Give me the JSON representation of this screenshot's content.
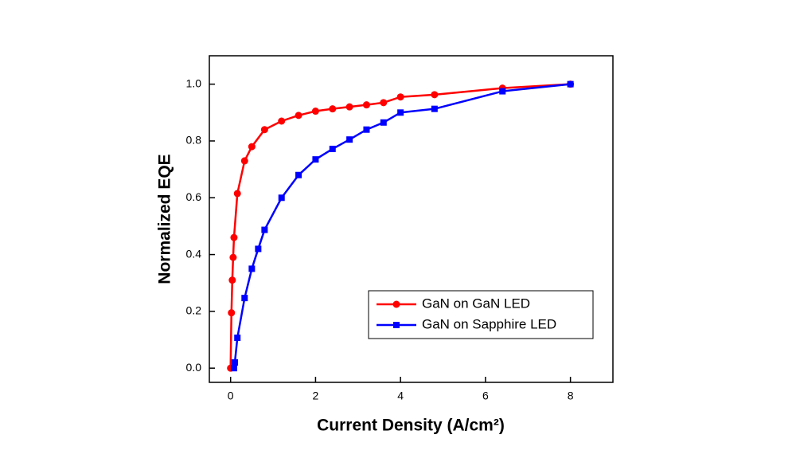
{
  "chart_data": {
    "type": "line",
    "xlabel": "Current Density (A/cm²)",
    "ylabel": "Normalized EQE",
    "xlim": [
      -0.5,
      9
    ],
    "ylim": [
      -0.05,
      1.1
    ],
    "xticks": [
      0,
      2,
      4,
      6,
      8
    ],
    "yticks": [
      {
        "value": 0,
        "label": "0.0"
      },
      {
        "value": 0.2,
        "label": "0.2"
      },
      {
        "value": 0.4,
        "label": "0.4"
      },
      {
        "value": 0.6,
        "label": "0.6"
      },
      {
        "value": 0.8,
        "label": "0.8"
      },
      {
        "value": 1.0,
        "label": "1.0"
      }
    ],
    "legend_position": "lower right",
    "series": [
      {
        "name": "GaN on GaN LED",
        "color": "#ff0000",
        "marker": "circle",
        "x": [
          0,
          0.02,
          0.04,
          0.06,
          0.08,
          0.16,
          0.33,
          0.5,
          0.8,
          1.2,
          1.6,
          2.0,
          2.4,
          2.8,
          3.2,
          3.6,
          4.0,
          4.8,
          6.4,
          8
        ],
        "values": [
          0,
          0.195,
          0.31,
          0.39,
          0.46,
          0.615,
          0.73,
          0.78,
          0.84,
          0.87,
          0.89,
          0.905,
          0.913,
          0.92,
          0.927,
          0.935,
          0.955,
          0.963,
          0.986,
          1.0
        ]
      },
      {
        "name": "GaN on Sapphire LED",
        "color": "#0000ff",
        "marker": "square",
        "x": [
          0.08,
          0.1,
          0.16,
          0.33,
          0.5,
          0.65,
          0.8,
          1.2,
          1.6,
          2.0,
          2.4,
          2.8,
          3.2,
          3.6,
          4.0,
          4.8,
          6.4,
          8
        ],
        "values": [
          0,
          0.02,
          0.107,
          0.247,
          0.35,
          0.42,
          0.487,
          0.6,
          0.68,
          0.735,
          0.772,
          0.805,
          0.84,
          0.865,
          0.9,
          0.913,
          0.975,
          1.0
        ]
      }
    ]
  }
}
